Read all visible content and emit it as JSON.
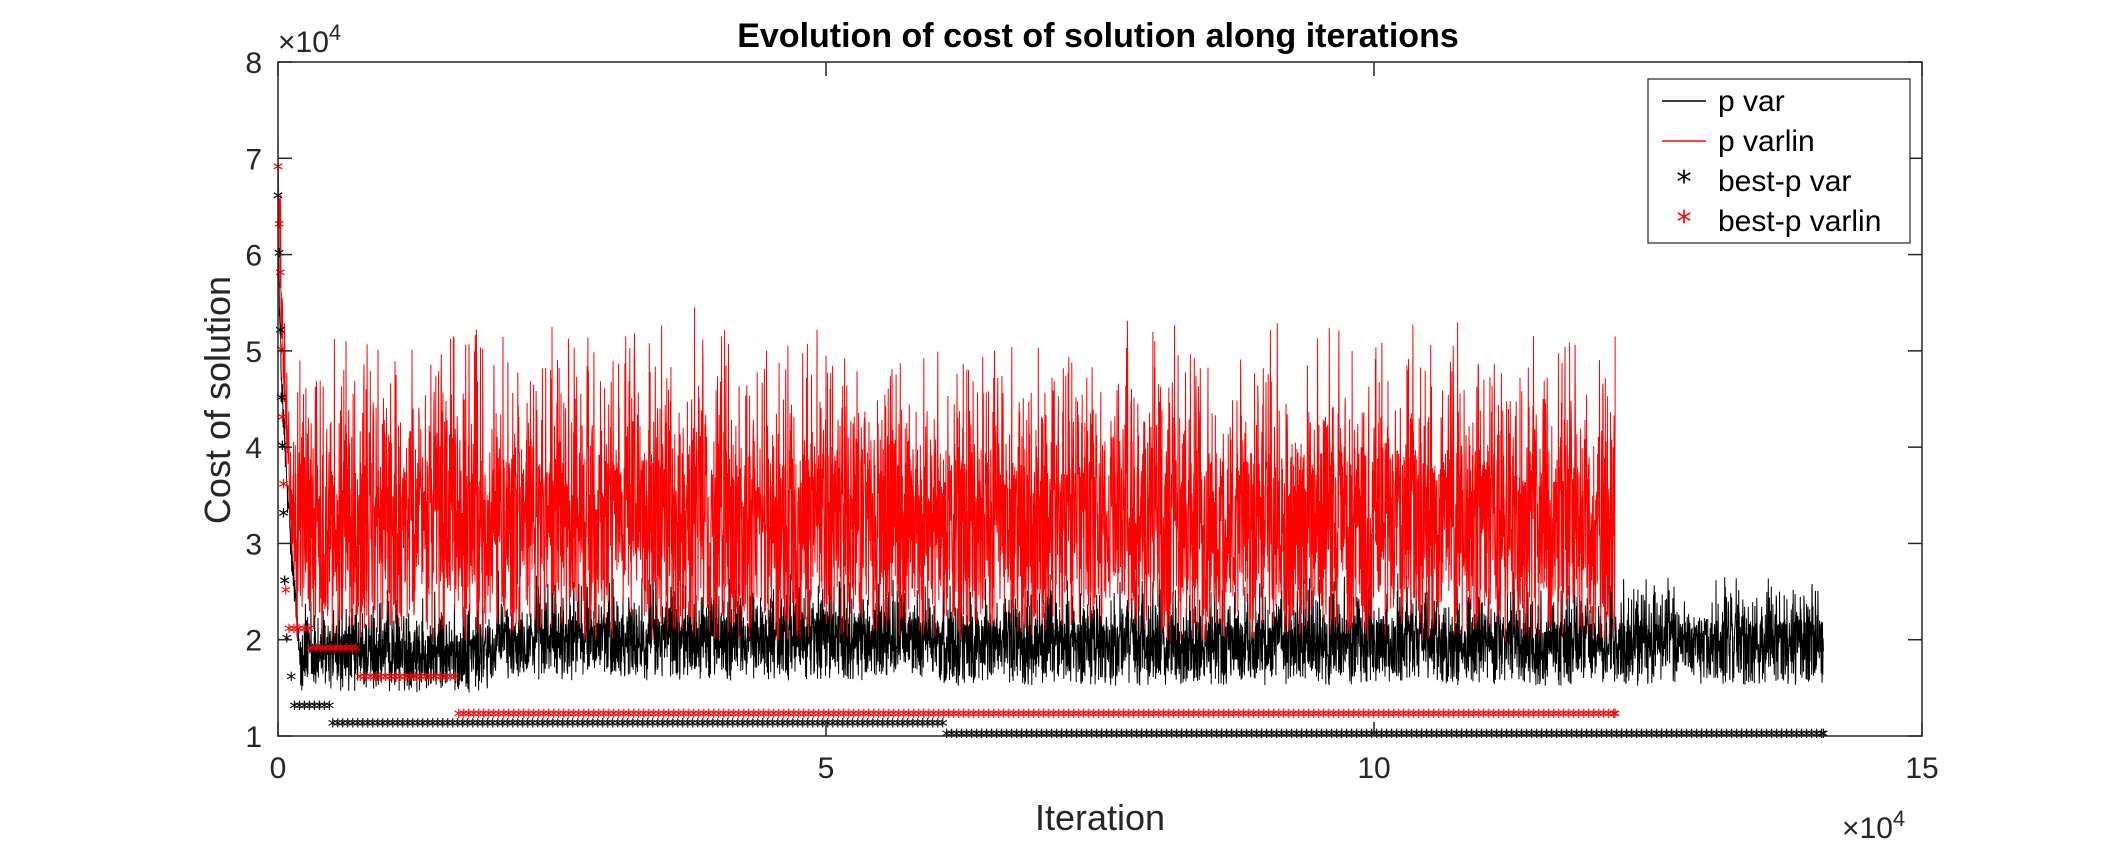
{
  "chart_data": {
    "type": "line",
    "title": "Evolution of cost of solution along iterations",
    "xlabel": "Iteration",
    "ylabel": "Cost of solution",
    "x_multiplier_label": "×10",
    "x_multiplier_exp": "4",
    "y_multiplier_label": "×10",
    "y_multiplier_exp": "4",
    "xlim": [
      0,
      150000
    ],
    "ylim": [
      10000,
      80000
    ],
    "x_ticks": [
      0,
      50000,
      100000,
      150000
    ],
    "x_tick_labels": [
      "0",
      "5",
      "10",
      "15"
    ],
    "y_ticks": [
      10000,
      20000,
      30000,
      40000,
      50000,
      60000,
      70000,
      80000
    ],
    "y_tick_labels": [
      "1",
      "2",
      "3",
      "4",
      "5",
      "6",
      "7",
      "8"
    ],
    "grid": false,
    "legend_position": "top-right",
    "series": [
      {
        "name": "p var",
        "style": "line",
        "color": "#000000",
        "x_end": 141000,
        "segments": [
          {
            "x_from": 0,
            "x_to": 2000,
            "start": 66000,
            "end": 18000,
            "spread": 3000
          },
          {
            "x_from": 2000,
            "x_to": 20000,
            "base": 17500,
            "spread": 5500
          },
          {
            "x_from": 20000,
            "x_to": 60000,
            "base": 19000,
            "spread": 6000
          },
          {
            "x_from": 60000,
            "x_to": 122000,
            "base": 18500,
            "spread": 6000
          },
          {
            "x_from": 122000,
            "x_to": 141000,
            "base": 18500,
            "spread": 6000
          }
        ],
        "peaks": [
          [
            3000,
            24000
          ],
          [
            25000,
            25000
          ],
          [
            36000,
            24500
          ],
          [
            132000,
            26500
          ],
          [
            137000,
            25000
          ]
        ]
      },
      {
        "name": "p varlin",
        "style": "line",
        "color": "#ff0000",
        "x_end": 122000,
        "segments": [
          {
            "x_from": 0,
            "x_to": 1500,
            "start": 74000,
            "end": 28000,
            "spread": 8000
          },
          {
            "x_from": 1500,
            "x_to": 122000,
            "base": 29000,
            "spread": 17000
          }
        ],
        "peaks": [
          [
            2000,
            49000
          ],
          [
            6000,
            48000
          ],
          [
            16000,
            51500
          ],
          [
            25000,
            52500
          ],
          [
            38000,
            54500
          ],
          [
            50000,
            49500
          ],
          [
            63000,
            48000
          ],
          [
            80000,
            51000
          ],
          [
            98000,
            50000
          ],
          [
            103000,
            48500
          ],
          [
            122000,
            51500
          ]
        ]
      },
      {
        "name": "best-p var",
        "style": "marker",
        "marker": "*",
        "color": "#000000",
        "steps": [
          [
            0,
            66000
          ],
          [
            100,
            60000
          ],
          [
            200,
            52000
          ],
          [
            300,
            45000
          ],
          [
            400,
            40000
          ],
          [
            500,
            33000
          ],
          [
            600,
            26000
          ],
          [
            800,
            20000
          ],
          [
            1200,
            16000
          ],
          [
            1500,
            13000
          ],
          [
            5000,
            11200
          ],
          [
            61000,
            10100
          ],
          [
            141000,
            10100
          ]
        ]
      },
      {
        "name": "best-p varlin",
        "style": "marker",
        "marker": "*",
        "color": "#ff0000",
        "steps": [
          [
            0,
            69000
          ],
          [
            100,
            63000
          ],
          [
            200,
            58000
          ],
          [
            300,
            50000
          ],
          [
            400,
            43000
          ],
          [
            500,
            36000
          ],
          [
            700,
            25000
          ],
          [
            1000,
            21000
          ],
          [
            3000,
            19000
          ],
          [
            7500,
            16000
          ],
          [
            16500,
            12200
          ],
          [
            122000,
            12200
          ]
        ]
      }
    ]
  }
}
